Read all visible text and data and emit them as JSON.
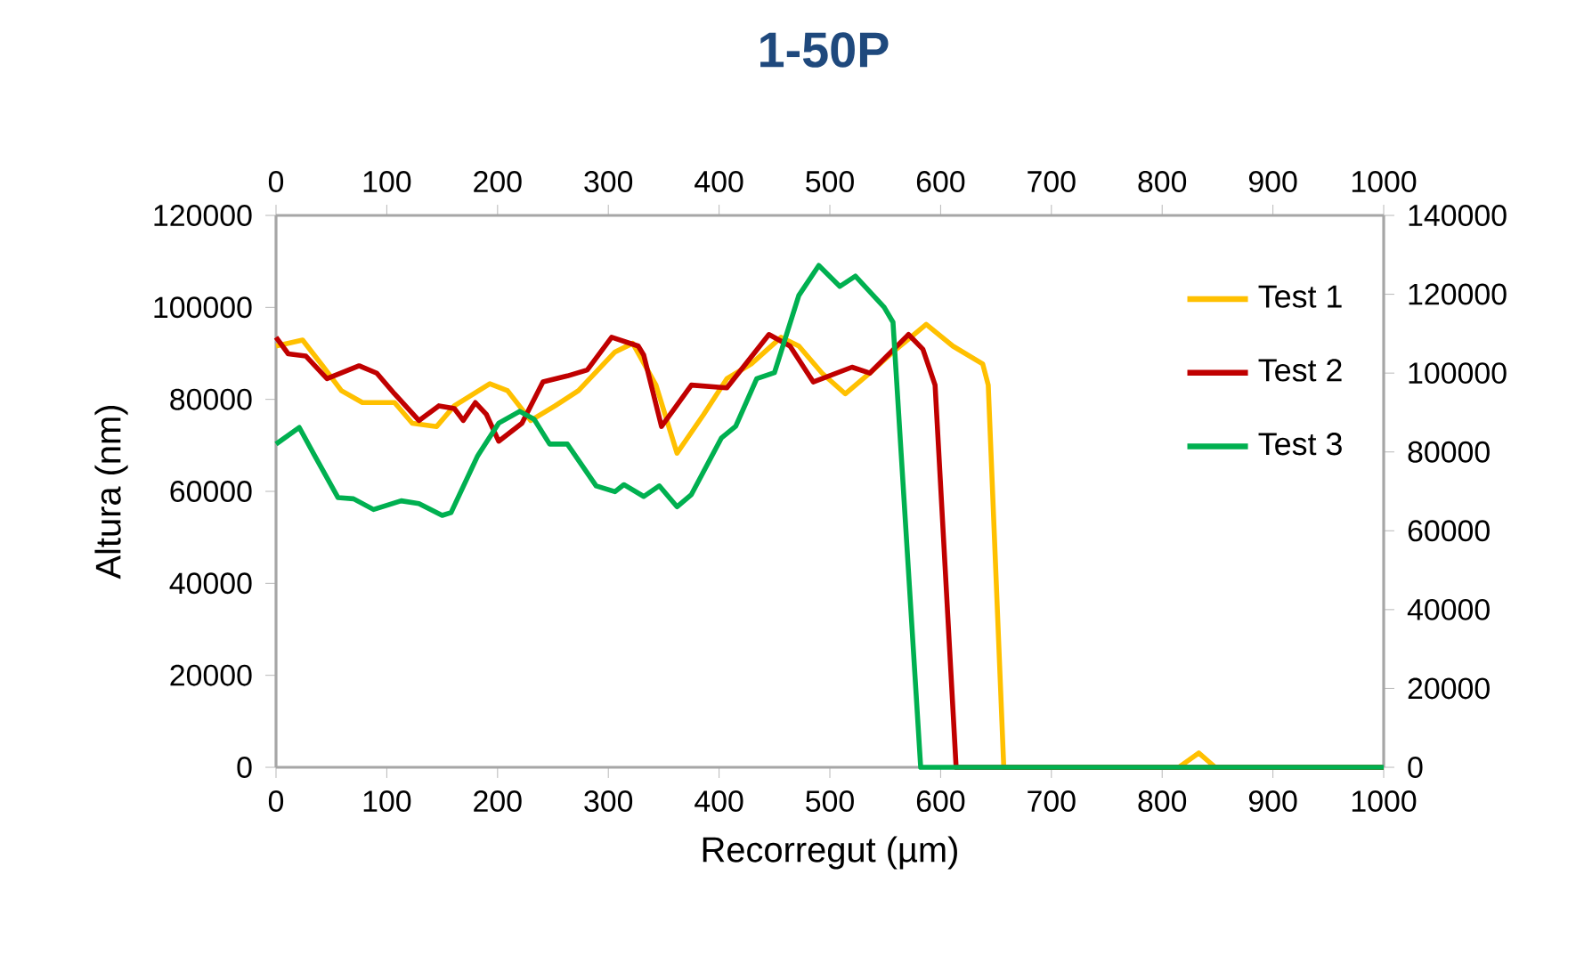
{
  "chart_data": {
    "type": "line",
    "title": "1-50P",
    "xlabel": "Recorregut (µm)",
    "ylabel": "Altura (nm)",
    "xlim": [
      0,
      1000
    ],
    "xticks": [
      0,
      100,
      200,
      300,
      400,
      500,
      600,
      700,
      800,
      900,
      1000
    ],
    "x2lim": [
      0,
      1000
    ],
    "x2ticks": [
      0,
      100,
      200,
      300,
      400,
      500,
      600,
      700,
      800,
      900,
      1000
    ],
    "ylim": [
      0,
      120000
    ],
    "yticks": [
      0,
      20000,
      40000,
      60000,
      80000,
      100000,
      120000
    ],
    "y2lim": [
      0,
      140000
    ],
    "y2ticks": [
      0,
      20000,
      40000,
      60000,
      80000,
      100000,
      120000,
      140000
    ],
    "legend": "top right",
    "marker": "none",
    "line_style": "solid",
    "series": [
      {
        "name": "Test 1",
        "color": "#ffc000",
        "x": [
          0,
          24,
          43,
          59,
          78,
          107,
          123,
          145,
          161,
          193,
          209,
          230,
          252,
          273,
          306,
          322,
          343,
          362,
          386,
          407,
          429,
          456,
          472,
          493,
          514,
          536,
          557,
          587,
          611,
          638,
          643,
          657,
          815,
          833,
          848,
          1000
        ],
        "values": [
          91600,
          92900,
          87000,
          81900,
          79300,
          79300,
          74800,
          74100,
          78600,
          83400,
          81900,
          75400,
          78600,
          81900,
          90300,
          92200,
          83100,
          68300,
          76700,
          84500,
          87700,
          93500,
          91600,
          85700,
          81200,
          85700,
          90300,
          96300,
          91600,
          87700,
          83100,
          0,
          0,
          3100,
          0,
          0
        ]
      },
      {
        "name": "Test 2",
        "color": "#c00000",
        "x": [
          0,
          11,
          27,
          46,
          75,
          91,
          107,
          129,
          147,
          161,
          169,
          180,
          190,
          201,
          222,
          241,
          263,
          281,
          303,
          327,
          332,
          348,
          375,
          407,
          445,
          464,
          485,
          520,
          536,
          571,
          584,
          595,
          614,
          1000
        ],
        "values": [
          93500,
          89900,
          89400,
          84500,
          87300,
          85700,
          81200,
          75400,
          78600,
          78000,
          75400,
          79300,
          76700,
          70900,
          74800,
          83800,
          85100,
          86400,
          93500,
          91600,
          89600,
          74100,
          83100,
          82500,
          94100,
          91600,
          83800,
          87000,
          85700,
          94100,
          90900,
          83100,
          0,
          0
        ]
      },
      {
        "name": "Test 3",
        "color": "#00b050",
        "axis": "y2",
        "x": [
          0,
          21,
          35,
          56,
          70,
          88,
          113,
          129,
          150,
          158,
          182,
          201,
          220,
          233,
          247,
          263,
          289,
          306,
          314,
          332,
          346,
          362,
          375,
          402,
          415,
          434,
          450,
          472,
          490,
          509,
          523,
          549,
          557,
          582,
          1000
        ],
        "values": [
          82000,
          86200,
          79000,
          68400,
          68100,
          65400,
          67600,
          66900,
          63900,
          64600,
          79000,
          87300,
          90300,
          88300,
          82000,
          82000,
          71400,
          69900,
          71700,
          68700,
          71400,
          66100,
          69200,
          83500,
          86500,
          98600,
          100100,
          119700,
          127300,
          122000,
          124600,
          116700,
          112900,
          0,
          0
        ]
      }
    ]
  }
}
